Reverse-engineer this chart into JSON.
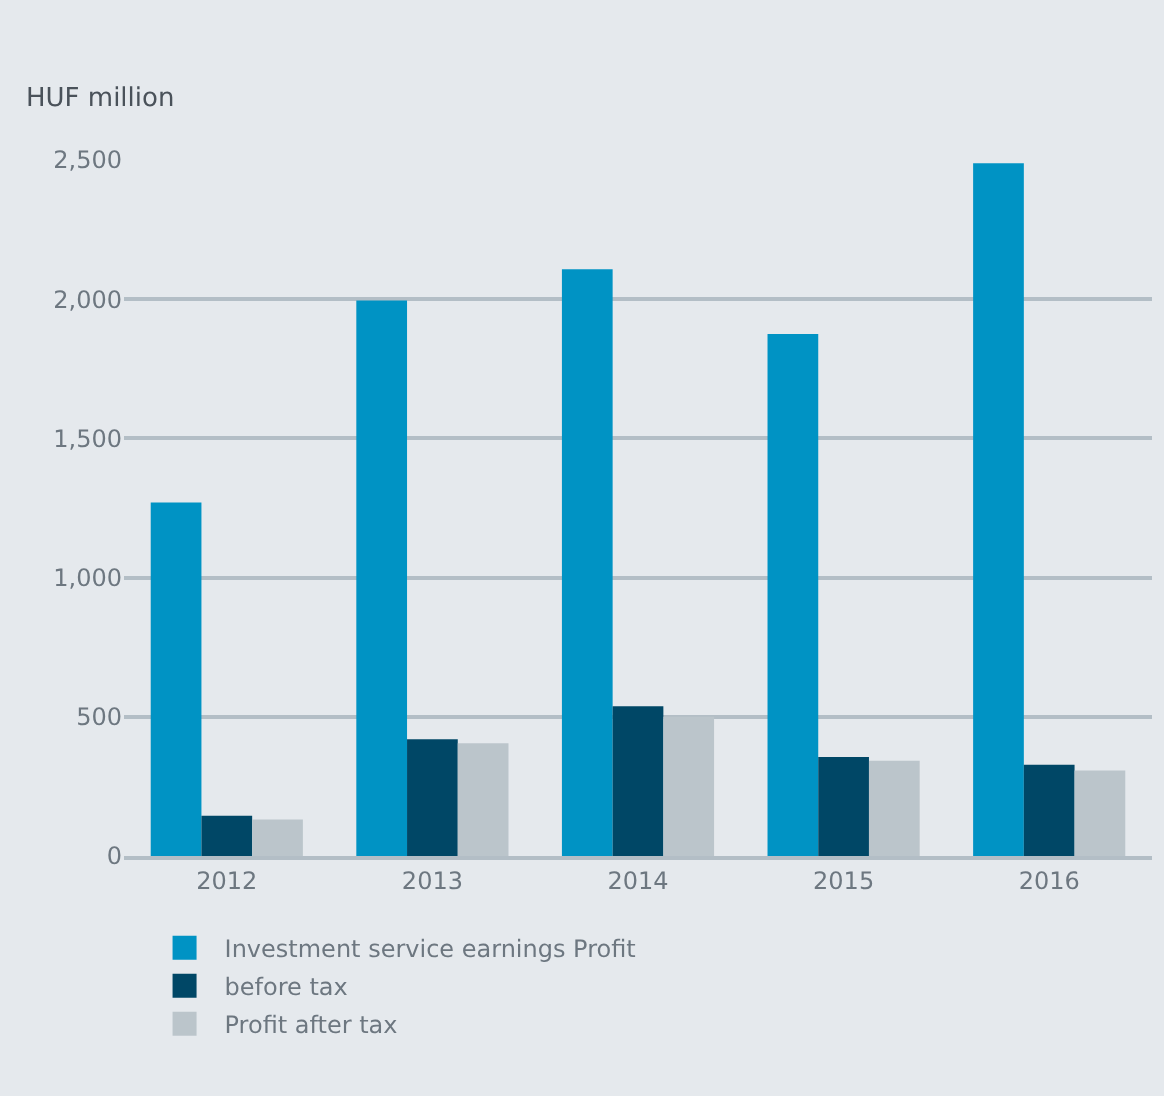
{
  "chart_data": {
    "type": "bar",
    "ylabel": "HUF million",
    "categories": [
      "2012",
      "2013",
      "2014",
      "2015",
      "2016"
    ],
    "series": [
      {
        "name": "Investment service earnings Profit",
        "color": "#0093c4",
        "values": [
          1270,
          1995,
          2108,
          1875,
          2488
        ]
      },
      {
        "name": "before tax",
        "color": "#004766",
        "values": [
          145,
          419,
          538,
          356,
          328
        ]
      },
      {
        "name": "Profit after tax",
        "color": "#bbc5cb",
        "values": [
          131,
          405,
          500,
          342,
          307
        ]
      }
    ],
    "ylim": [
      0,
      2500
    ],
    "yticks": [
      {
        "value": 0,
        "label": "0"
      },
      {
        "value": 500,
        "label": "500"
      },
      {
        "value": 1000,
        "label": "1,000"
      },
      {
        "value": 1500,
        "label": "1,500"
      },
      {
        "value": 2000,
        "label": "2,000"
      },
      {
        "value": 2500,
        "label": "2,500"
      }
    ],
    "grid": "y",
    "legend": "bottom left"
  }
}
